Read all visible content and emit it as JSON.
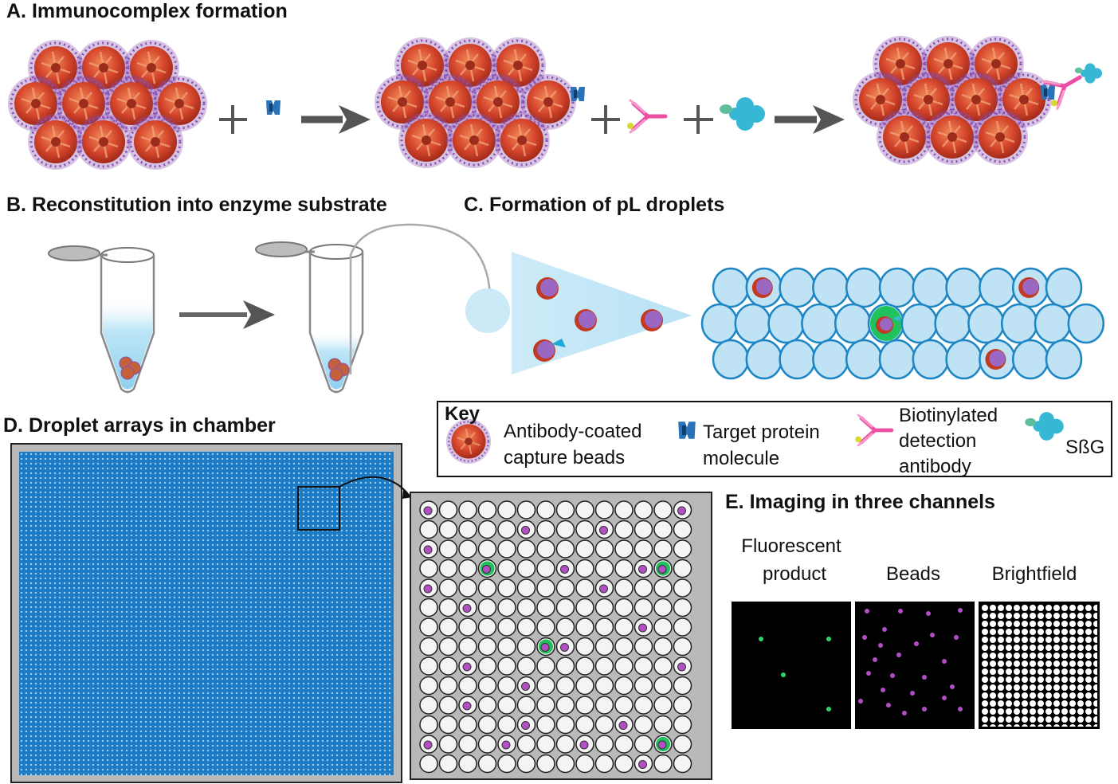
{
  "panels": {
    "a": "A. Immunocomplex formation",
    "b": "B. Reconstitution into enzyme substrate",
    "c": "C. Formation of pL droplets",
    "d": "D. Droplet arrays in chamber",
    "e": "E. Imaging in three channels"
  },
  "key": {
    "title": "Key",
    "beads_line1": "Antibody-coated",
    "beads_line2": "capture beads",
    "target_line1": "Target protein",
    "target_line2": "molecule",
    "antibody_line1": "Biotinylated",
    "antibody_line2": "detection",
    "antibody_line3": "antibody",
    "sbg": "SßG"
  },
  "channels": {
    "fluorescent_line1": "Fluorescent",
    "fluorescent_line2": "product",
    "beads": "Beads",
    "brightfield": "Brightfield"
  },
  "icons": [
    "capture-bead-icon",
    "target-protein-icon",
    "detection-antibody-icon",
    "sbg-enzyme-icon",
    "arrow-icon",
    "plus-icon",
    "tube-icon"
  ],
  "colors": {
    "bead_core": "#d5462c",
    "bead_fringe": "#8a4fb0",
    "droplet_fill": "#bfe3f4",
    "droplet_stroke": "#1f86c4",
    "chamber_fill": "#1c7bc4",
    "fluorescent": "#2fd36b",
    "bead_dot": "#b34fc4",
    "antibody": "#ec4ea3",
    "sbg": "#36b8d4"
  }
}
